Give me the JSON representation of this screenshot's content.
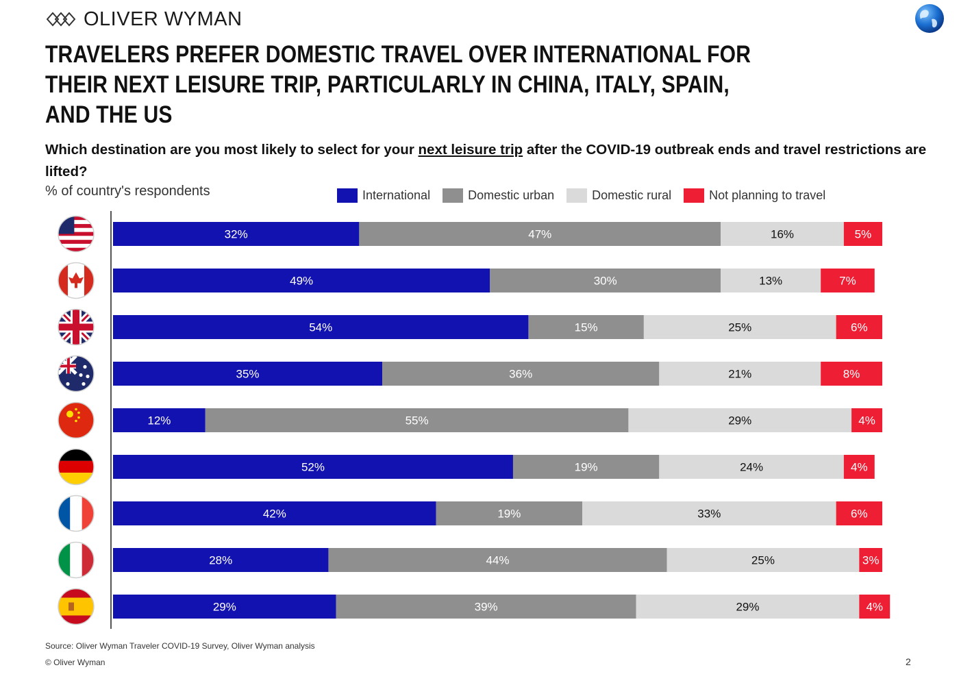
{
  "header": {
    "brand_name": "OLIVER WYMAN",
    "title": "TRAVELERS PREFER DOMESTIC TRAVEL OVER INTERNATIONAL FOR THEIR NEXT LEISURE TRIP, PARTICULARLY IN CHINA, ITALY, SPAIN, AND THE US"
  },
  "question": {
    "part1": "Which destination are you most likely to select for your ",
    "underlined": "next leisure trip",
    "part2": " after the COVID-19 outbreak ends and travel restrictions are lifted?"
  },
  "unit_label": "% of country's respondents",
  "footer": {
    "source": "Source: Oliver Wyman Traveler COVID-19 Survey, Oliver Wyman analysis",
    "copyright": "© Oliver Wyman",
    "page_number": "2"
  },
  "colors": {
    "international": "#1212b0",
    "domestic_urban": "#8f8f8f",
    "domestic_rural": "#dadada",
    "not_planning": "#ee1f35"
  },
  "chart_data": {
    "type": "bar",
    "orientation": "horizontal",
    "stacked": true,
    "categories": [
      "United States",
      "Canada",
      "United Kingdom",
      "Australia",
      "China",
      "Germany",
      "France",
      "Italy",
      "Spain"
    ],
    "category_icons": [
      "us-flag-icon",
      "canada-flag-icon",
      "uk-flag-icon",
      "australia-flag-icon",
      "china-flag-icon",
      "germany-flag-icon",
      "france-flag-icon",
      "italy-flag-icon",
      "spain-flag-icon"
    ],
    "series": [
      {
        "name": "International",
        "color": "#1212b0",
        "values": [
          32,
          49,
          54,
          35,
          12,
          52,
          42,
          28,
          29
        ],
        "labels": [
          "32%",
          "49%",
          "54%",
          "35%",
          "12%",
          "52%",
          "42%",
          "28%",
          "29%"
        ]
      },
      {
        "name": "Domestic urban",
        "color": "#8f8f8f",
        "values": [
          47,
          30,
          15,
          36,
          55,
          19,
          19,
          44,
          39
        ],
        "labels": [
          "47%",
          "30%",
          "15%",
          "36%",
          "55%",
          "19%",
          "19%",
          "44%",
          "39%"
        ]
      },
      {
        "name": "Domestic rural",
        "color": "#dadada",
        "values": [
          16,
          13,
          25,
          21,
          29,
          24,
          33,
          25,
          29
        ],
        "labels": [
          "16%",
          "13%",
          "25%",
          "21%",
          "29%",
          "24%",
          "33%",
          "25%",
          "29%"
        ]
      },
      {
        "name": "Not planning to travel",
        "color": "#ee1f35",
        "values": [
          5,
          7,
          6,
          8,
          4,
          4,
          6,
          3,
          4
        ],
        "labels": [
          "5%",
          "7%",
          "6%",
          "8%",
          "4%",
          "4%",
          "6%",
          "3%",
          "4%"
        ]
      }
    ],
    "xlim": [
      0,
      100
    ],
    "legend_position": "top-right",
    "grid": false
  }
}
